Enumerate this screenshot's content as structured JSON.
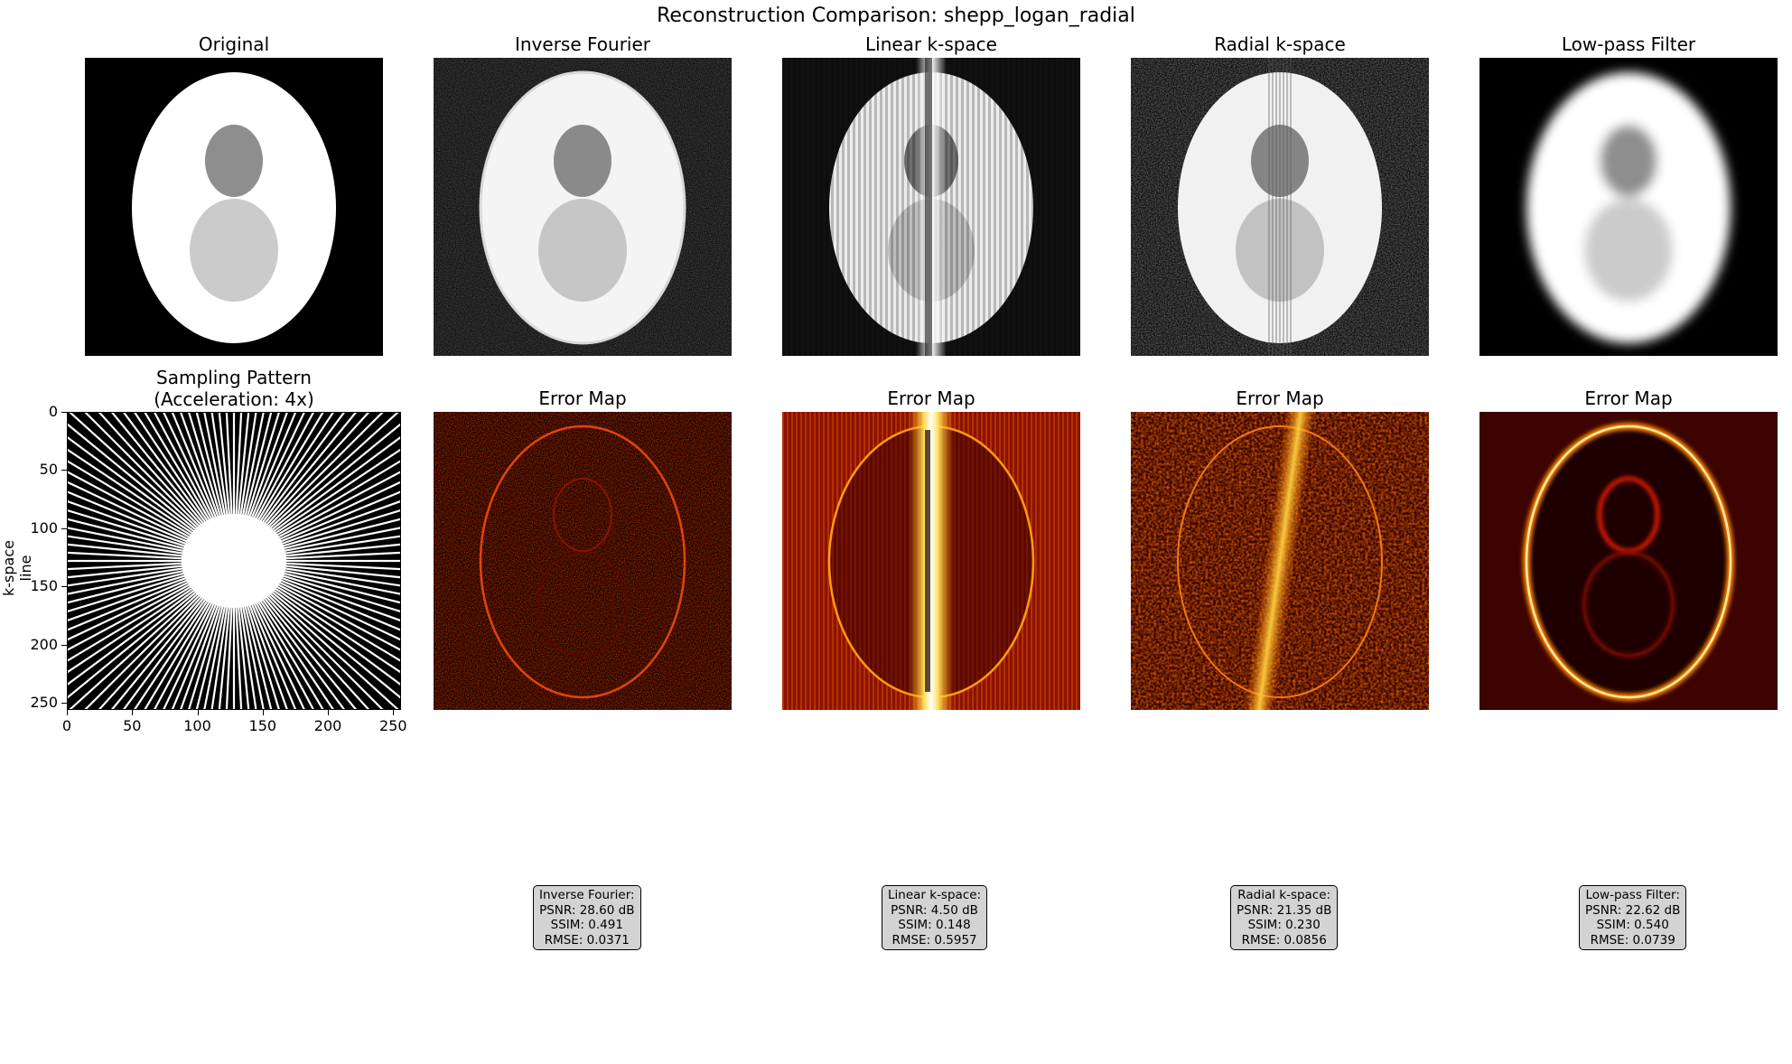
{
  "figure": {
    "suptitle": "Reconstruction Comparison: shepp_logan_radial"
  },
  "top_row": [
    {
      "title": "Original",
      "variant": "original"
    },
    {
      "title": "Inverse Fourier",
      "variant": "inverse"
    },
    {
      "title": "Linear k-space",
      "variant": "linear"
    },
    {
      "title": "Radial k-space",
      "variant": "radial"
    },
    {
      "title": "Low-pass Filter",
      "variant": "lowpass"
    }
  ],
  "sampling": {
    "title": "Sampling Pattern\n(Acceleration: 4x)",
    "ylabel": "k-space line",
    "xticks": [
      "0",
      "50",
      "100",
      "150",
      "200",
      "250"
    ],
    "yticks": [
      "0",
      "50",
      "100",
      "150",
      "200",
      "250"
    ]
  },
  "error_maps": [
    {
      "title": "Error Map",
      "variant": "inverse"
    },
    {
      "title": "Error Map",
      "variant": "linear"
    },
    {
      "title": "Error Map",
      "variant": "radial"
    },
    {
      "title": "Error Map",
      "variant": "lowpass"
    }
  ],
  "metrics": [
    {
      "method": "Inverse Fourier:",
      "psnr": "PSNR: 28.60 dB",
      "ssim": "SSIM: 0.491",
      "rmse": "RMSE: 0.0371"
    },
    {
      "method": "Linear k-space:",
      "psnr": "PSNR: 4.50 dB",
      "ssim": "SSIM: 0.148",
      "rmse": "RMSE: 0.5957"
    },
    {
      "method": "Radial k-space:",
      "psnr": "PSNR: 21.35 dB",
      "ssim": "SSIM: 0.230",
      "rmse": "RMSE: 0.0856"
    },
    {
      "method": "Low-pass Filter:",
      "psnr": "PSNR: 22.62 dB",
      "ssim": "SSIM: 0.540",
      "rmse": "RMSE: 0.0739"
    }
  ],
  "chart_data": [
    {
      "type": "image",
      "title": "Original"
    },
    {
      "type": "image",
      "title": "Inverse Fourier"
    },
    {
      "type": "image",
      "title": "Linear k-space"
    },
    {
      "type": "image",
      "title": "Radial k-space"
    },
    {
      "type": "image",
      "title": "Low-pass Filter"
    },
    {
      "type": "heatmap",
      "title": "Sampling Pattern\n(Acceleration: 4x)",
      "ylabel": "k-space line",
      "xlim": [
        0,
        256
      ],
      "ylim": [
        256,
        0
      ],
      "acceleration": 4
    },
    {
      "type": "heatmap",
      "title": "Error Map",
      "method": "Inverse Fourier",
      "psnr_db": 28.6,
      "ssim": 0.491,
      "rmse": 0.0371
    },
    {
      "type": "heatmap",
      "title": "Error Map",
      "method": "Linear k-space",
      "psnr_db": 4.5,
      "ssim": 0.148,
      "rmse": 0.5957
    },
    {
      "type": "heatmap",
      "title": "Error Map",
      "method": "Radial k-space",
      "psnr_db": 21.35,
      "ssim": 0.23,
      "rmse": 0.0856
    },
    {
      "type": "heatmap",
      "title": "Error Map",
      "method": "Low-pass Filter",
      "psnr_db": 22.62,
      "ssim": 0.54,
      "rmse": 0.0739
    }
  ]
}
